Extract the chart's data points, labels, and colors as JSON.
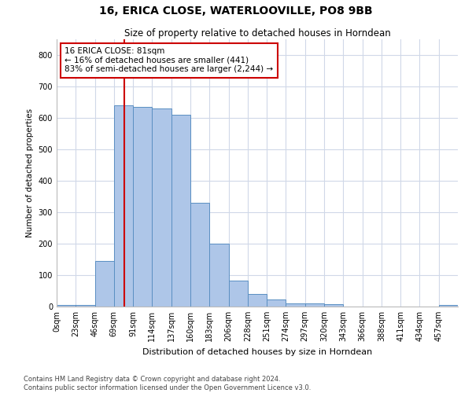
{
  "title": "16, ERICA CLOSE, WATERLOOVILLE, PO8 9BB",
  "subtitle": "Size of property relative to detached houses in Horndean",
  "xlabel": "Distribution of detached houses by size in Horndean",
  "ylabel": "Number of detached properties",
  "bin_labels": [
    "0sqm",
    "23sqm",
    "46sqm",
    "69sqm",
    "91sqm",
    "114sqm",
    "137sqm",
    "160sqm",
    "183sqm",
    "206sqm",
    "228sqm",
    "251sqm",
    "274sqm",
    "297sqm",
    "320sqm",
    "343sqm",
    "366sqm",
    "388sqm",
    "411sqm",
    "434sqm",
    "457sqm"
  ],
  "bar_heights": [
    5,
    5,
    145,
    640,
    635,
    630,
    610,
    330,
    200,
    83,
    40,
    22,
    10,
    10,
    8,
    0,
    0,
    0,
    0,
    0,
    5
  ],
  "bar_color": "#aec6e8",
  "bar_edge_color": "#5a8fc2",
  "vline_color": "#cc0000",
  "annotation_text": "16 ERICA CLOSE: 81sqm\n← 16% of detached houses are smaller (441)\n83% of semi-detached houses are larger (2,244) →",
  "annotation_box_color": "#ffffff",
  "annotation_box_edge": "#cc0000",
  "ylim": [
    0,
    850
  ],
  "yticks": [
    0,
    100,
    200,
    300,
    400,
    500,
    600,
    700,
    800
  ],
  "footer_text": "Contains HM Land Registry data © Crown copyright and database right 2024.\nContains public sector information licensed under the Open Government Licence v3.0.",
  "background_color": "#ffffff",
  "grid_color": "#d0d8e8"
}
